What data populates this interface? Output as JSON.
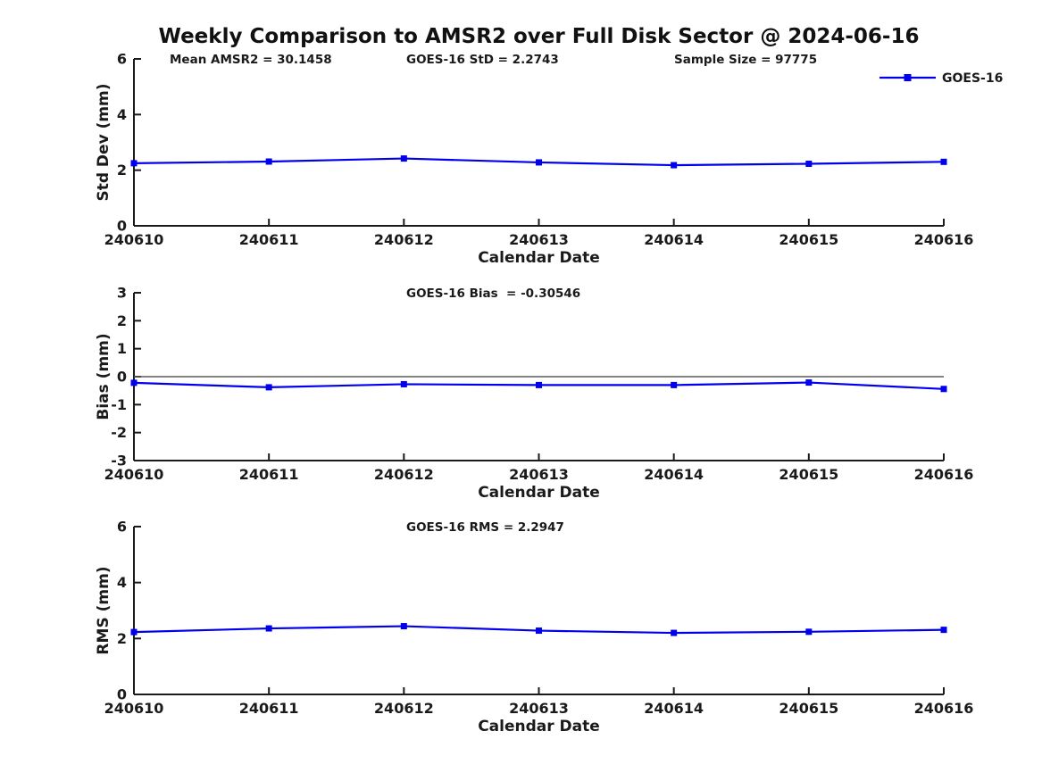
{
  "title": "Weekly Comparison to AMSR2 over Full Disk Sector @ 2024-06-16",
  "legend": {
    "label": "GOES-16",
    "position": "top-right-outside-box"
  },
  "colors": {
    "series": "#0000EE",
    "zero_line": "#5a5a5a",
    "axis": "#1a1a1a",
    "text": "#1a1a1a"
  },
  "chart_data": [
    {
      "type": "line",
      "panel": "std-dev",
      "annotations": [
        "Mean AMSR2 = 30.1458",
        "GOES-16 StD = 2.2743",
        "Sample Size = 97775"
      ],
      "xlabel": "Calendar Date",
      "ylabel": "Std Dev (mm)",
      "ylim": [
        0,
        6
      ],
      "yticks": [
        0,
        2,
        4,
        6
      ],
      "grid": false,
      "zero_line": false,
      "categories": [
        "240610",
        "240611",
        "240612",
        "240613",
        "240614",
        "240615",
        "240616"
      ],
      "series": [
        {
          "name": "GOES-16",
          "marker": "square",
          "values": [
            2.25,
            2.31,
            2.42,
            2.28,
            2.18,
            2.23,
            2.3
          ]
        }
      ],
      "show_legend": true
    },
    {
      "type": "line",
      "panel": "bias",
      "annotations": [
        "GOES-16 Bias  = -0.30546"
      ],
      "xlabel": "Calendar Date",
      "ylabel": "Bias (mm)",
      "ylim": [
        -3,
        3
      ],
      "yticks": [
        -3,
        -2,
        -1,
        0,
        1,
        2,
        3
      ],
      "grid": false,
      "zero_line": true,
      "categories": [
        "240610",
        "240611",
        "240612",
        "240613",
        "240614",
        "240615",
        "240616"
      ],
      "series": [
        {
          "name": "GOES-16",
          "marker": "square",
          "values": [
            -0.22,
            -0.38,
            -0.27,
            -0.3,
            -0.3,
            -0.21,
            -0.44
          ]
        }
      ],
      "show_legend": false
    },
    {
      "type": "line",
      "panel": "rms",
      "annotations": [
        "GOES-16 RMS = 2.2947"
      ],
      "xlabel": "Calendar Date",
      "ylabel": "RMS (mm)",
      "ylim": [
        0,
        6
      ],
      "yticks": [
        0,
        2,
        4,
        6
      ],
      "grid": false,
      "zero_line": false,
      "categories": [
        "240610",
        "240611",
        "240612",
        "240613",
        "240614",
        "240615",
        "240616"
      ],
      "series": [
        {
          "name": "GOES-16",
          "marker": "square",
          "values": [
            2.23,
            2.36,
            2.44,
            2.28,
            2.2,
            2.24,
            2.31
          ]
        }
      ],
      "show_legend": false
    }
  ]
}
